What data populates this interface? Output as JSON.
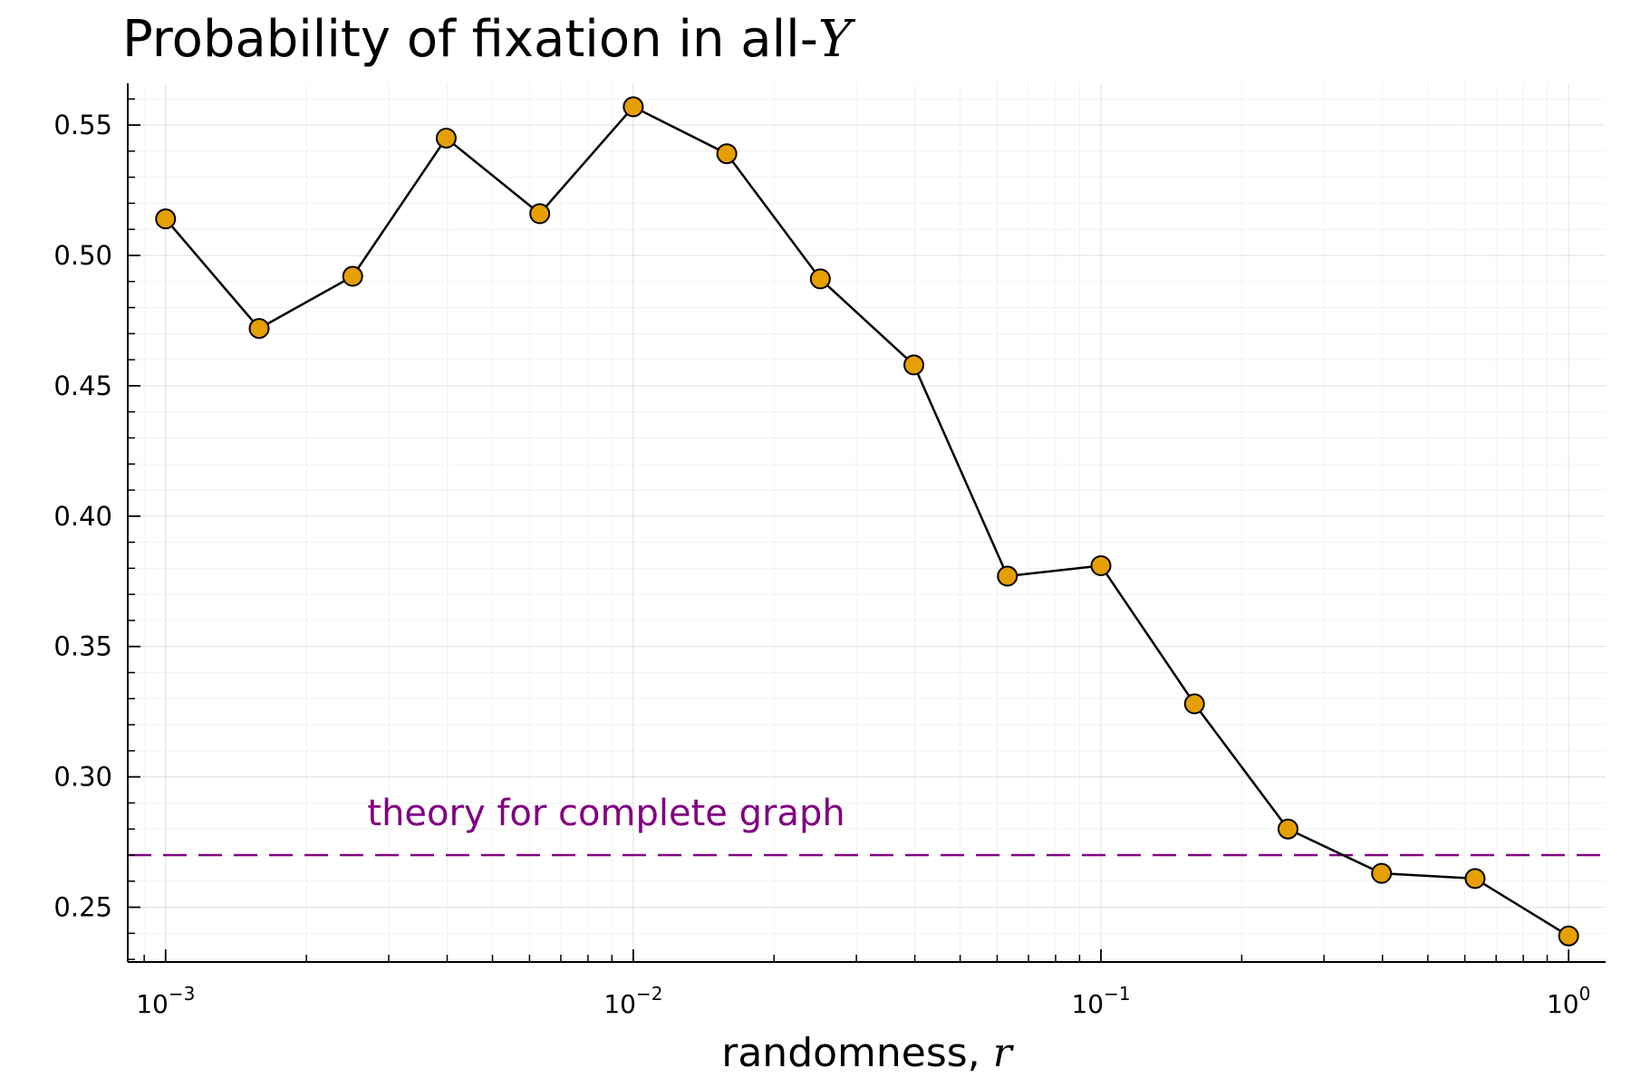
{
  "chart_data": {
    "type": "line",
    "title": "Probability of fixation in all-",
    "title_math": "Y",
    "xlabel": "randomness, ",
    "xlabel_math": "r",
    "ylabel": "",
    "xscale": "log10",
    "xlim": [
      0.00083,
      1.2
    ],
    "ylim": [
      0.229,
      0.566
    ],
    "x_ticks": [
      {
        "value": 0.001,
        "base": "10",
        "exp": "−3"
      },
      {
        "value": 0.01,
        "base": "10",
        "exp": "−2"
      },
      {
        "value": 0.1,
        "base": "10",
        "exp": "−1"
      },
      {
        "value": 1,
        "base": "10",
        "exp": "0"
      }
    ],
    "y_ticks": [
      "0.25",
      "0.30",
      "0.35",
      "0.40",
      "0.45",
      "0.50",
      "0.55"
    ],
    "grid": true,
    "legend": "none",
    "series": [
      {
        "color": "#000000",
        "marker_fill": "#E69F00",
        "marker_edge": "#000000",
        "points": [
          {
            "x": 0.001,
            "y": 0.514
          },
          {
            "x": 0.001585,
            "y": 0.472
          },
          {
            "x": 0.002512,
            "y": 0.492
          },
          {
            "x": 0.003981,
            "y": 0.545
          },
          {
            "x": 0.00631,
            "y": 0.516
          },
          {
            "x": 0.01,
            "y": 0.557
          },
          {
            "x": 0.01585,
            "y": 0.539
          },
          {
            "x": 0.02512,
            "y": 0.491
          },
          {
            "x": 0.03981,
            "y": 0.458
          },
          {
            "x": 0.0631,
            "y": 0.377
          },
          {
            "x": 0.1,
            "y": 0.381
          },
          {
            "x": 0.1585,
            "y": 0.328
          },
          {
            "x": 0.2512,
            "y": 0.28
          },
          {
            "x": 0.3981,
            "y": 0.263
          },
          {
            "x": 0.631,
            "y": 0.261
          },
          {
            "x": 1.0,
            "y": 0.239
          }
        ]
      }
    ],
    "reference_line": {
      "y": 0.27,
      "color": "#800080",
      "style": "dashed"
    },
    "annotation": {
      "text": "theory for complete graph",
      "x": 0.0027,
      "y": 0.2815,
      "color": "#800080"
    }
  }
}
